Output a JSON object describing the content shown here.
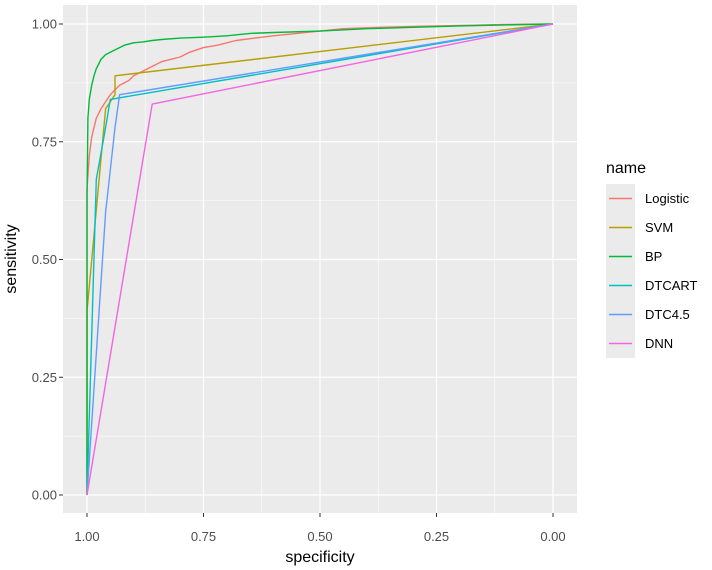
{
  "chart_data": {
    "type": "line",
    "xlabel": "specificity",
    "ylabel": "sensitivity",
    "x_reversed": true,
    "xlim": [
      1.0,
      0.0
    ],
    "ylim": [
      0.0,
      1.0
    ],
    "x_ticks": [
      1.0,
      0.75,
      0.5,
      0.25,
      0.0
    ],
    "x_tick_labels": [
      "1.00",
      "0.75",
      "0.50",
      "0.25",
      "0.00"
    ],
    "y_ticks": [
      0.0,
      0.25,
      0.5,
      0.75,
      1.0
    ],
    "y_tick_labels": [
      "0.00",
      "0.25",
      "0.50",
      "0.75",
      "1.00"
    ],
    "grid": true,
    "legend_title": "name",
    "legend_position": "right",
    "series": [
      {
        "name": "Logistic",
        "color": "#f8766d",
        "x": [
          1.0,
          1.0,
          0.995,
          0.99,
          0.985,
          0.98,
          0.97,
          0.96,
          0.95,
          0.94,
          0.93,
          0.92,
          0.91,
          0.9,
          0.88,
          0.86,
          0.84,
          0.82,
          0.8,
          0.78,
          0.75,
          0.72,
          0.68,
          0.64,
          0.6,
          0.55,
          0.5,
          0.45,
          0.4,
          0.3,
          0.2,
          0.1,
          0.0
        ],
        "y": [
          0.0,
          0.65,
          0.72,
          0.76,
          0.78,
          0.8,
          0.82,
          0.835,
          0.85,
          0.86,
          0.87,
          0.875,
          0.88,
          0.89,
          0.9,
          0.91,
          0.92,
          0.925,
          0.93,
          0.94,
          0.95,
          0.955,
          0.965,
          0.97,
          0.975,
          0.98,
          0.985,
          0.99,
          0.992,
          0.995,
          0.997,
          0.999,
          1.0
        ]
      },
      {
        "name": "SVM",
        "color": "#b79f00",
        "x": [
          1.0,
          1.0,
          0.96,
          0.94,
          0.94,
          0.0
        ],
        "y": [
          0.0,
          0.39,
          0.82,
          0.85,
          0.89,
          1.0
        ]
      },
      {
        "name": "BP",
        "color": "#00ba38",
        "x": [
          1.0,
          1.0,
          0.998,
          0.995,
          0.99,
          0.985,
          0.98,
          0.975,
          0.97,
          0.965,
          0.96,
          0.95,
          0.94,
          0.93,
          0.92,
          0.9,
          0.88,
          0.86,
          0.84,
          0.8,
          0.75,
          0.7,
          0.65,
          0.6,
          0.5,
          0.4,
          0.3,
          0.2,
          0.1,
          0.0
        ],
        "y": [
          0.0,
          0.63,
          0.8,
          0.84,
          0.87,
          0.89,
          0.905,
          0.915,
          0.925,
          0.93,
          0.935,
          0.94,
          0.945,
          0.95,
          0.955,
          0.96,
          0.962,
          0.965,
          0.967,
          0.97,
          0.972,
          0.975,
          0.98,
          0.982,
          0.985,
          0.99,
          0.993,
          0.996,
          0.998,
          1.0
        ]
      },
      {
        "name": "DTCART",
        "color": "#00bfc4",
        "x": [
          1.0,
          0.98,
          0.96,
          0.95,
          0.0
        ],
        "y": [
          0.0,
          0.67,
          0.78,
          0.84,
          1.0
        ]
      },
      {
        "name": "DTC4.5",
        "color": "#619cff",
        "x": [
          1.0,
          0.96,
          0.94,
          0.93,
          0.0
        ],
        "y": [
          0.0,
          0.6,
          0.78,
          0.85,
          1.0
        ]
      },
      {
        "name": "DNN",
        "color": "#f564e3",
        "x": [
          1.0,
          0.86,
          0.0
        ],
        "y": [
          0.0,
          0.83,
          1.0
        ]
      }
    ]
  }
}
